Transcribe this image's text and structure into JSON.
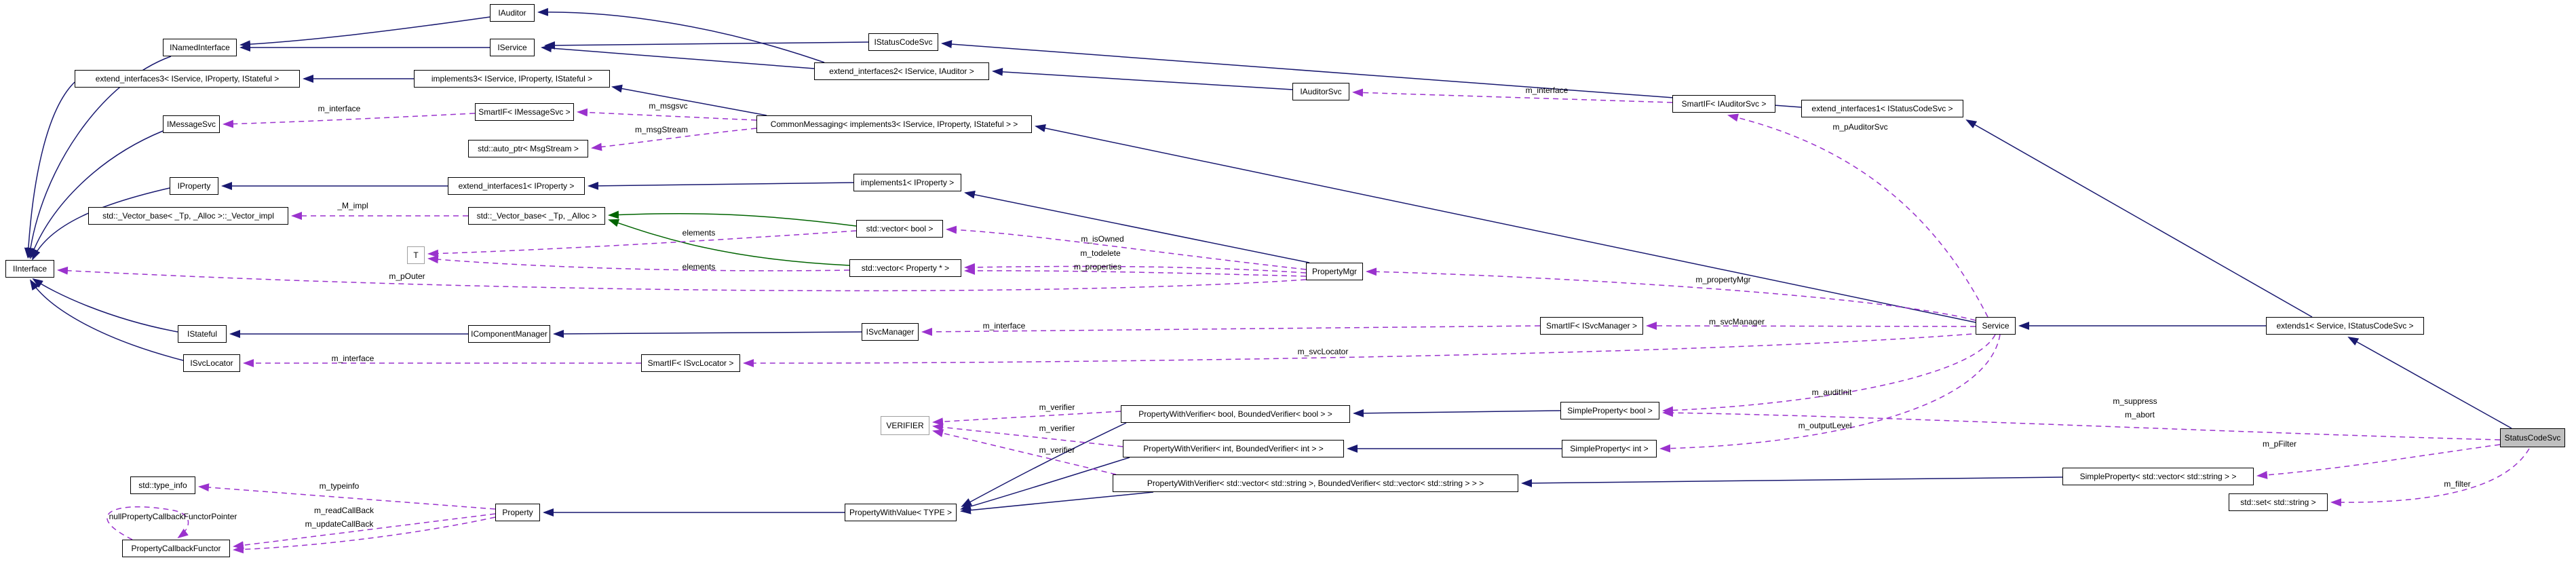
{
  "diagram": {
    "kind": "class-collaboration-graph",
    "focal_class": "StatusCodeSvc",
    "colors": {
      "background": "#ffffff",
      "node_fill": "#ffffff",
      "node_border": "#000000",
      "highlight_fill": "#bfbfbf",
      "template_border": "#9f9f9f",
      "inheritance_edge": "#191970",
      "protected_inheritance_edge": "#006400",
      "usage_edge": "#9a32cd"
    },
    "nodes": [
      {
        "id": "iinterface",
        "label": "IInterface",
        "kind": "class"
      },
      {
        "id": "iauditor",
        "label": "IAuditor",
        "kind": "class"
      },
      {
        "id": "iservice",
        "label": "IService",
        "kind": "class"
      },
      {
        "id": "inamedinterface",
        "label": "INamedInterface",
        "kind": "class"
      },
      {
        "id": "extend_interfaces3",
        "label": "extend_interfaces3< IService, IProperty, IStateful >",
        "kind": "class"
      },
      {
        "id": "implements3",
        "label": "implements3< IService, IProperty, IStateful >",
        "kind": "class"
      },
      {
        "id": "istatuscodesvc",
        "label": "IStatusCodeSvc",
        "kind": "class"
      },
      {
        "id": "extend_interfaces2",
        "label": "extend_interfaces2< IService, IAuditor >",
        "kind": "class"
      },
      {
        "id": "iauditorsvc",
        "label": "IAuditorSvc",
        "kind": "class"
      },
      {
        "id": "smartif_iauditorsvc",
        "label": "SmartIF< IAuditorSvc >",
        "kind": "class"
      },
      {
        "id": "extend_interfaces1_statuscodesvc",
        "label": "extend_interfaces1< IStatusCodeSvc >",
        "kind": "class"
      },
      {
        "id": "imessagesvc",
        "label": "IMessageSvc",
        "kind": "class"
      },
      {
        "id": "smartif_imessagesvc",
        "label": "SmartIF< IMessageSvc >",
        "kind": "class"
      },
      {
        "id": "auto_ptr_msgstream",
        "label": "std::auto_ptr< MsgStream >",
        "kind": "class"
      },
      {
        "id": "commonmessaging",
        "label": "CommonMessaging< implements3< IService, IProperty, IStateful > >",
        "kind": "class"
      },
      {
        "id": "iproperty",
        "label": "IProperty",
        "kind": "class"
      },
      {
        "id": "extend_interfaces1_iproperty",
        "label": "extend_interfaces1< IProperty >",
        "kind": "class"
      },
      {
        "id": "implements1_iproperty",
        "label": "implements1< IProperty >",
        "kind": "class"
      },
      {
        "id": "vector_base_impl",
        "label": "std::_Vector_base< _Tp, _Alloc >::_Vector_impl",
        "kind": "class"
      },
      {
        "id": "vector_base",
        "label": "std::_Vector_base< _Tp, _Alloc >",
        "kind": "class"
      },
      {
        "id": "vector_bool",
        "label": "std::vector< bool >",
        "kind": "class"
      },
      {
        "id": "t_param",
        "label": "T",
        "kind": "template-param"
      },
      {
        "id": "vector_property",
        "label": "std::vector< Property * >",
        "kind": "class"
      },
      {
        "id": "propertymgr",
        "label": "PropertyMgr",
        "kind": "class"
      },
      {
        "id": "istateful",
        "label": "IStateful",
        "kind": "class"
      },
      {
        "id": "icomponentmanager",
        "label": "IComponentManager",
        "kind": "class"
      },
      {
        "id": "isvcmanager",
        "label": "ISvcManager",
        "kind": "class"
      },
      {
        "id": "smartif_isvcmanager",
        "label": "SmartIF< ISvcManager >",
        "kind": "class"
      },
      {
        "id": "service",
        "label": "Service",
        "kind": "class"
      },
      {
        "id": "isvclocator",
        "label": "ISvcLocator",
        "kind": "class"
      },
      {
        "id": "smartif_isvclocator",
        "label": "SmartIF< ISvcLocator >",
        "kind": "class"
      },
      {
        "id": "extends1",
        "label": "extends1< Service, IStatusCodeSvc >",
        "kind": "class"
      },
      {
        "id": "statuscodesvc",
        "label": "StatusCodeSvc",
        "kind": "highlight"
      },
      {
        "id": "verifier",
        "label": "VERIFIER",
        "kind": "template-param"
      },
      {
        "id": "pwv_bool",
        "label": "PropertyWithVerifier< bool, BoundedVerifier< bool > >",
        "kind": "class"
      },
      {
        "id": "simpleproperty_bool",
        "label": "SimpleProperty< bool >",
        "kind": "class"
      },
      {
        "id": "pwv_int",
        "label": "PropertyWithVerifier< int, BoundedVerifier< int > >",
        "kind": "class"
      },
      {
        "id": "simpleproperty_int",
        "label": "SimpleProperty< int >",
        "kind": "class"
      },
      {
        "id": "pwv_vector",
        "label": "PropertyWithVerifier< std::vector< std::string >, BoundedVerifier< std::vector< std::string > > >",
        "kind": "class"
      },
      {
        "id": "simpleproperty_vector",
        "label": "SimpleProperty< std::vector< std::string > >",
        "kind": "class"
      },
      {
        "id": "set_string",
        "label": "std::set< std::string >",
        "kind": "class"
      },
      {
        "id": "type_info",
        "label": "std::type_info",
        "kind": "class"
      },
      {
        "id": "propertycallbackfunctor",
        "label": "PropertyCallbackFunctor",
        "kind": "class"
      },
      {
        "id": "property",
        "label": "Property",
        "kind": "class"
      },
      {
        "id": "propertywithvalue",
        "label": "PropertyWithValue< TYPE >",
        "kind": "class"
      }
    ],
    "edge_labels": [
      {
        "id": "m_interface_msgsvc",
        "text": "m_interface"
      },
      {
        "id": "m_msgsvc",
        "text": "m_msgsvc"
      },
      {
        "id": "m_msgstream",
        "text": "m_msgStream"
      },
      {
        "id": "m_interface_auditorsvc",
        "text": "m_interface"
      },
      {
        "id": "m_pauditorsvc",
        "text": "m_pAuditorSvc"
      },
      {
        "id": "m_impl",
        "text": "_M_impl"
      },
      {
        "id": "elements_top",
        "text": "elements"
      },
      {
        "id": "elements_bottom",
        "text": "elements"
      },
      {
        "id": "m_isowned",
        "text": "m_isOwned"
      },
      {
        "id": "m_todelete",
        "text": "m_todelete"
      },
      {
        "id": "m_properties",
        "text": "m_properties"
      },
      {
        "id": "m_pouter",
        "text": "m_pOuter"
      },
      {
        "id": "m_propertymgr",
        "text": "m_propertyMgr"
      },
      {
        "id": "m_interface_svcmanager",
        "text": "m_interface"
      },
      {
        "id": "m_svcmanager",
        "text": "m_svcManager"
      },
      {
        "id": "m_interface_svclocator",
        "text": "m_interface"
      },
      {
        "id": "m_svclocator",
        "text": "m_svcLocator"
      },
      {
        "id": "m_auditinit",
        "text": "m_auditInit"
      },
      {
        "id": "m_outputlevel",
        "text": "m_outputLevel"
      },
      {
        "id": "m_suppress",
        "text": "m_suppress"
      },
      {
        "id": "m_abort",
        "text": "m_abort"
      },
      {
        "id": "m_pfilter",
        "text": "m_pFilter"
      },
      {
        "id": "m_filter",
        "text": "m_filter"
      },
      {
        "id": "m_verifier_bool",
        "text": "m_verifier"
      },
      {
        "id": "m_verifier_int",
        "text": "m_verifier"
      },
      {
        "id": "m_verifier_vector",
        "text": "m_verifier"
      },
      {
        "id": "m_typeinfo",
        "text": "m_typeinfo"
      },
      {
        "id": "m_readcallback",
        "text": "m_readCallBack"
      },
      {
        "id": "m_updatecallback",
        "text": "m_updateCallBack"
      },
      {
        "id": "nullpropertycallbackfunctorpointer",
        "text": "nullPropertyCallbackFunctorPointer"
      }
    ]
  }
}
